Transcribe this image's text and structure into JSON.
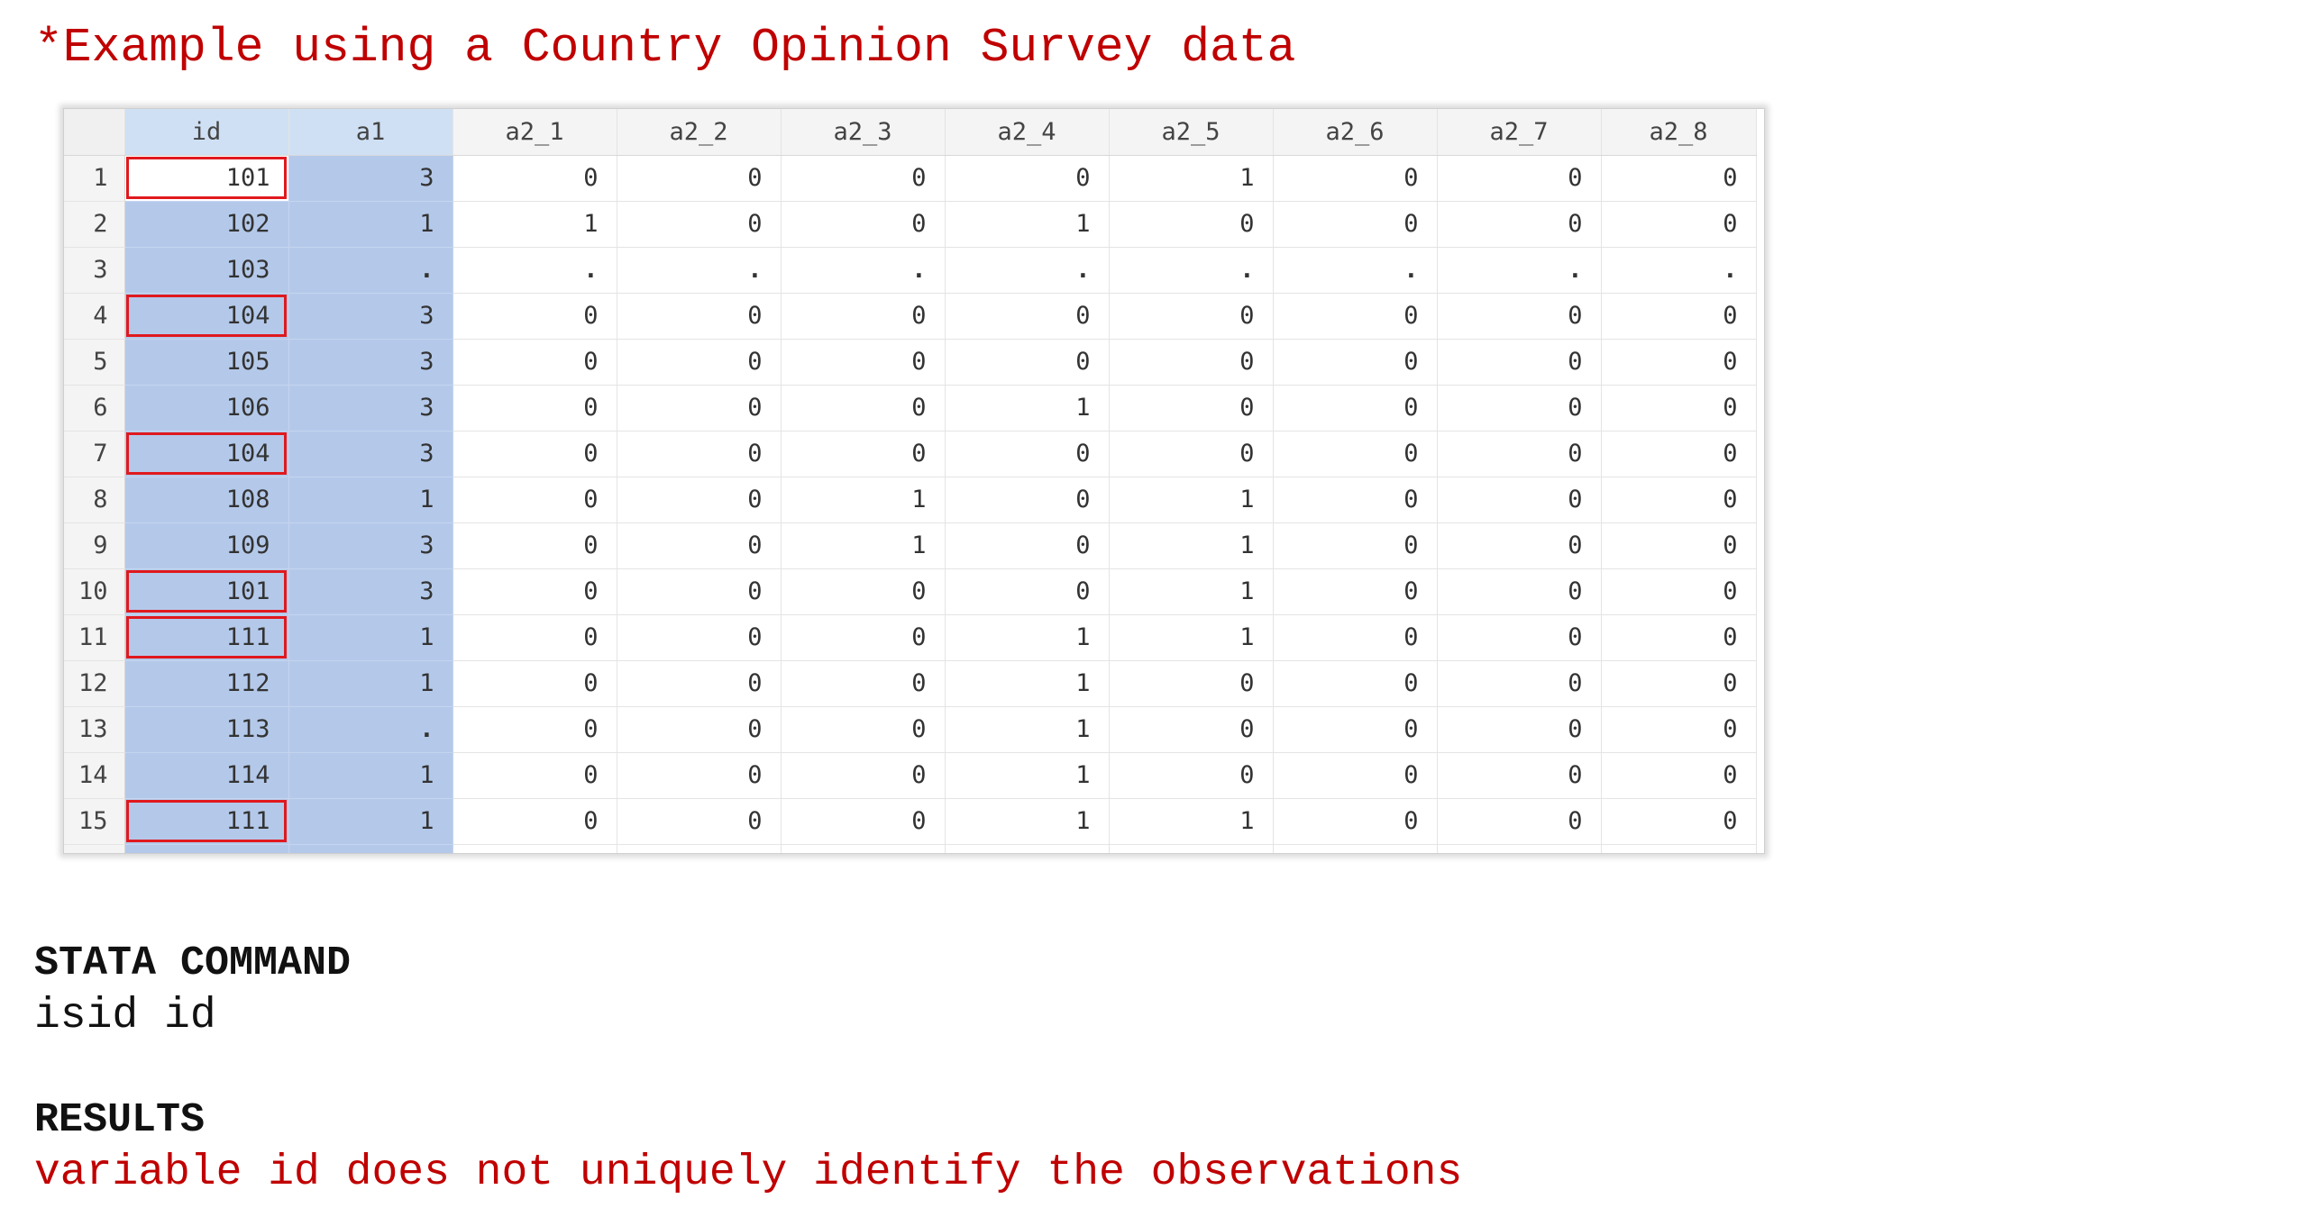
{
  "headline": "*Example using a Country Opinion Survey data",
  "grid": {
    "columns": [
      "id",
      "a1",
      "a2_1",
      "a2_2",
      "a2_3",
      "a2_4",
      "a2_5",
      "a2_6",
      "a2_7",
      "a2_8"
    ],
    "rows": [
      {
        "n": "1",
        "values": [
          "101",
          "3",
          "0",
          "0",
          "0",
          "0",
          "1",
          "0",
          "0",
          "0"
        ]
      },
      {
        "n": "2",
        "values": [
          "102",
          "1",
          "1",
          "0",
          "0",
          "1",
          "0",
          "0",
          "0",
          "0"
        ]
      },
      {
        "n": "3",
        "values": [
          "103",
          ".",
          ".",
          ".",
          ".",
          ".",
          ".",
          ".",
          ".",
          "."
        ]
      },
      {
        "n": "4",
        "values": [
          "104",
          "3",
          "0",
          "0",
          "0",
          "0",
          "0",
          "0",
          "0",
          "0"
        ]
      },
      {
        "n": "5",
        "values": [
          "105",
          "3",
          "0",
          "0",
          "0",
          "0",
          "0",
          "0",
          "0",
          "0"
        ]
      },
      {
        "n": "6",
        "values": [
          "106",
          "3",
          "0",
          "0",
          "0",
          "1",
          "0",
          "0",
          "0",
          "0"
        ]
      },
      {
        "n": "7",
        "values": [
          "104",
          "3",
          "0",
          "0",
          "0",
          "0",
          "0",
          "0",
          "0",
          "0"
        ]
      },
      {
        "n": "8",
        "values": [
          "108",
          "1",
          "0",
          "0",
          "1",
          "0",
          "1",
          "0",
          "0",
          "0"
        ]
      },
      {
        "n": "9",
        "values": [
          "109",
          "3",
          "0",
          "0",
          "1",
          "0",
          "1",
          "0",
          "0",
          "0"
        ]
      },
      {
        "n": "10",
        "values": [
          "101",
          "3",
          "0",
          "0",
          "0",
          "0",
          "1",
          "0",
          "0",
          "0"
        ]
      },
      {
        "n": "11",
        "values": [
          "111",
          "1",
          "0",
          "0",
          "0",
          "1",
          "1",
          "0",
          "0",
          "0"
        ]
      },
      {
        "n": "12",
        "values": [
          "112",
          "1",
          "0",
          "0",
          "0",
          "1",
          "0",
          "0",
          "0",
          "0"
        ]
      },
      {
        "n": "13",
        "values": [
          "113",
          ".",
          "0",
          "0",
          "0",
          "1",
          "0",
          "0",
          "0",
          "0"
        ]
      },
      {
        "n": "14",
        "values": [
          "114",
          "1",
          "0",
          "0",
          "0",
          "1",
          "0",
          "0",
          "0",
          "0"
        ]
      },
      {
        "n": "15",
        "values": [
          "111",
          "1",
          "0",
          "0",
          "0",
          "1",
          "1",
          "0",
          "0",
          "0"
        ]
      }
    ],
    "duplicate_id_rows": [
      "1",
      "4",
      "7",
      "10",
      "11",
      "15"
    ],
    "selected_columns": [
      "id",
      "a1"
    ],
    "active_cell": {
      "row": "1",
      "column": "id"
    },
    "colors": {
      "selection": "#b4c9ea",
      "selection_header": "#cfe0f4",
      "duplicate_outline": "#e0191e",
      "headline": "#c00000"
    }
  },
  "command": {
    "heading": "STATA COMMAND",
    "text": "isid id"
  },
  "results": {
    "heading": "RESULTS",
    "text": "variable id does not uniquely identify the observations"
  }
}
